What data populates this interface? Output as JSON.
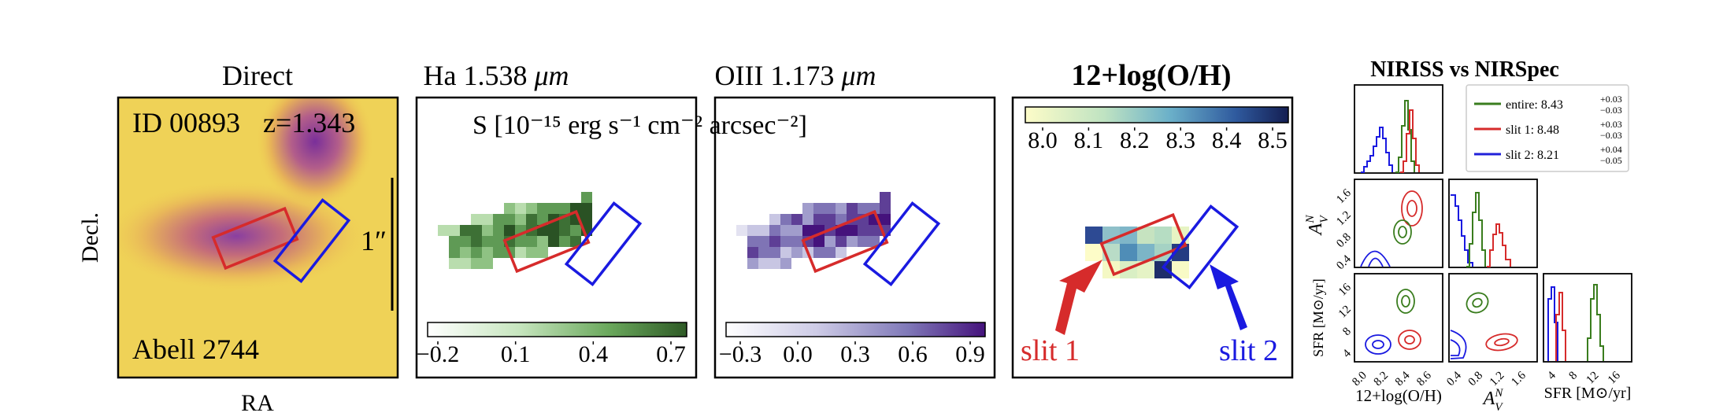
{
  "panels": {
    "direct": {
      "title": "Direct",
      "id_label": "ID 00893",
      "z_label": "z=1.343",
      "field_label": "Abell 2744",
      "scale_label": "1″",
      "xlabel": "RA",
      "ylabel": "Decl."
    },
    "ha": {
      "title_pre": "Ha 1.538 ",
      "title_unit": "μm",
      "flux_unit": "S [10⁻¹⁵ erg s⁻¹ cm⁻² arcsec⁻²]",
      "colorbar_ticks": [
        "−0.2",
        "0.1",
        "0.4",
        "0.7"
      ]
    },
    "oiii": {
      "title_pre": "OIII 1.173 ",
      "title_unit": "μm",
      "colorbar_ticks": [
        "−0.3",
        "0.0",
        "0.3",
        "0.6",
        "0.9"
      ]
    },
    "metal": {
      "title": "12+log(O/H)",
      "colorbar_ticks": [
        "8.0",
        "8.1",
        "8.2",
        "8.3",
        "8.4",
        "8.5"
      ],
      "slit1_label": "slit 1",
      "slit2_label": "slit 2"
    },
    "corner": {
      "title": "NIRISS vs NIRSpec",
      "legend": [
        {
          "name": "entire: 8.43",
          "sup": "+0.03",
          "sub": "−0.03",
          "color": "#3a7d1e"
        },
        {
          "name": "slit 1: 8.48",
          "sup": "+0.03",
          "sub": "−0.03",
          "color": "#d62b2b"
        },
        {
          "name": "slit 2: 8.21",
          "sup": "+0.04",
          "sub": "−0.05",
          "color": "#2121d9"
        }
      ],
      "xlabel_metal": "12+log(O/H)",
      "xlabel_av": "A",
      "av_sup": "N",
      "av_sub": "V",
      "xlabel_sfr": "SFR [M⊙/yr]",
      "ylabel_av": "A",
      "ylabel_sfr": "SFR [M⊙/yr]",
      "metal_ticks": [
        "8.0",
        "8.2",
        "8.4",
        "8.6"
      ],
      "av_ticks": [
        "0.4",
        "0.8",
        "1.2",
        "1.6"
      ],
      "sfr_ticks": [
        "4",
        "8",
        "12",
        "16"
      ]
    }
  },
  "colors": {
    "slit1": "#d62b2b",
    "slit2": "#1a1ae0",
    "entire": "#3a7d1e"
  }
}
